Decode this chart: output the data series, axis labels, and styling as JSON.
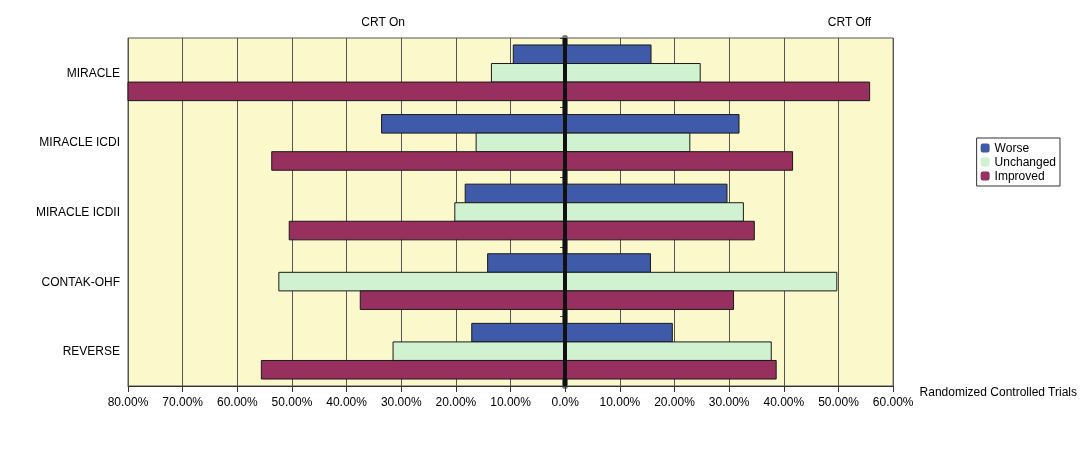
{
  "chart_data": {
    "type": "bar",
    "orientation": "horizontal",
    "xlabel": "Randomized Controlled Trials",
    "annotations": [
      "CRT On",
      "CRT Off"
    ],
    "categories": [
      "MIRACLE",
      "MIRACLE ICDI",
      "MIRACLE ICDII",
      "CONTAK-OHF",
      "REVERSE"
    ],
    "series": [
      {
        "name": "Worse",
        "color": "#3f5aa8",
        "base": [
          -9.5,
          -33.6,
          -18.3,
          -14.2,
          -17.1
        ],
        "values": [
          25.2,
          65.4,
          47.9,
          29.8,
          36.7
        ]
      },
      {
        "name": "Unchanged",
        "color": "#d0f2d0",
        "base": [
          -13.5,
          -16.3,
          -20.2,
          -52.4,
          -31.5
        ],
        "values": [
          38.2,
          39.1,
          52.8,
          102.1,
          69.2
        ]
      },
      {
        "name": "Improved",
        "color": "#97305f",
        "base": [
          -80,
          -53.7,
          -50.5,
          -37.5,
          -55.6
        ],
        "values": [
          135.7,
          95.3,
          85.1,
          68.3,
          94.2
        ]
      }
    ],
    "xlim": [
      -80,
      60
    ],
    "xticks": [
      {
        "value": -80,
        "label": "80.00%"
      },
      {
        "value": -70,
        "label": "70.00%"
      },
      {
        "value": -60,
        "label": "60.00%"
      },
      {
        "value": -50,
        "label": "50.00%"
      },
      {
        "value": -40,
        "label": "40.00%"
      },
      {
        "value": -30,
        "label": "30.00%"
      },
      {
        "value": -20,
        "label": "20.00%"
      },
      {
        "value": -10,
        "label": "10.00%"
      },
      {
        "value": 0,
        "label": "0.0%"
      },
      {
        "value": 10,
        "label": "10.00%"
      },
      {
        "value": 20,
        "label": "20.00%"
      },
      {
        "value": 30,
        "label": "30.00%"
      },
      {
        "value": 40,
        "label": "40.00%"
      },
      {
        "value": 50,
        "label": "50.00%"
      },
      {
        "value": 60,
        "label": "60.00%"
      }
    ],
    "ref_lines": [
      {
        "axis": "x",
        "value": 0,
        "color": "#111111"
      }
    ],
    "grid": "x",
    "legend": "right"
  }
}
